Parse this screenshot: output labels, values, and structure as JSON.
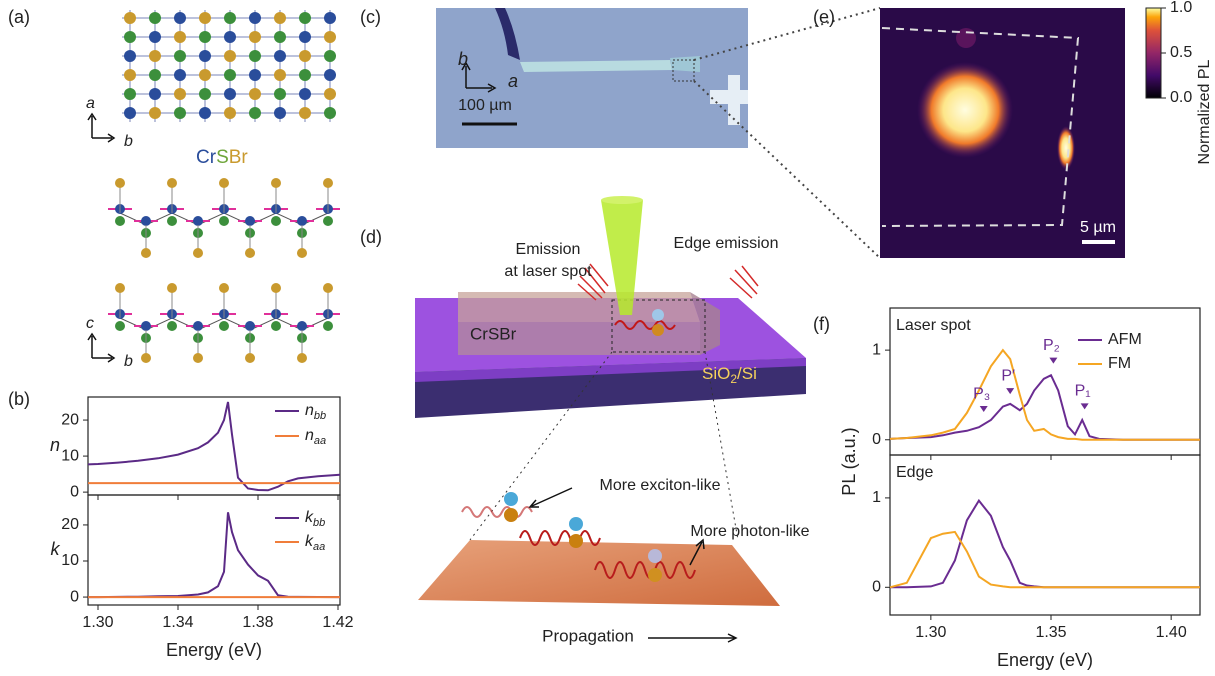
{
  "panels": {
    "a": {
      "label": "(a)",
      "axes_top": [
        "a",
        "b"
      ],
      "formula": [
        "Cr",
        "S",
        "Br"
      ],
      "axes_bottom": [
        "c",
        "b"
      ]
    },
    "c": {
      "label": "(c)",
      "axes": [
        "b",
        "a"
      ],
      "scale_bar": "100 µm"
    },
    "d": {
      "label": "(d)",
      "emission_spot": [
        "Emission",
        "at laser spot"
      ],
      "edge_emission": "Edge emission",
      "crystal": "CrSBr",
      "substrate": [
        "SiO",
        "2",
        "/Si"
      ],
      "exciton_like": "More exciton-like",
      "photon_like": "More photon-like",
      "propagation": "Propagation"
    },
    "e": {
      "label": "(e)",
      "scale_bar": "5 µm",
      "colorbar_label": "Normalized PL",
      "colorbar_lim": [
        0,
        1
      ],
      "colorbar_ticks": [
        {
          "value": 0,
          "label": "0.0"
        },
        {
          "value": 0.5,
          "label": "0.5"
        },
        {
          "value": 1,
          "label": "1.0"
        }
      ]
    }
  },
  "chart_data": [
    {
      "type": "line",
      "label": "(b)",
      "xlabel": "Energy (eV)",
      "xlim": [
        1.295,
        1.421
      ],
      "xticks": [
        {
          "value": 1.3,
          "label": "1.30"
        },
        {
          "value": 1.34,
          "label": "1.34"
        },
        {
          "value": 1.38,
          "label": "1.38"
        },
        {
          "value": 1.42,
          "label": "1.42"
        }
      ],
      "x": [
        1.295,
        1.3,
        1.31,
        1.32,
        1.33,
        1.34,
        1.35,
        1.355,
        1.36,
        1.363,
        1.365,
        1.367,
        1.37,
        1.375,
        1.38,
        1.385,
        1.39,
        1.395,
        1.4,
        1.41,
        1.421
      ],
      "subplots": [
        {
          "ylabel": "n",
          "ylim": [
            -0.8,
            26.4
          ],
          "yticks": [
            0,
            10,
            20
          ],
          "legend": true,
          "series": [
            {
              "name": "n",
              "subscript": "bb",
              "color": "#5b2a86",
              "values": [
                7.7,
                7.8,
                8.2,
                8.7,
                9.4,
                10.4,
                12.2,
                13.8,
                16.5,
                20,
                25,
                16,
                4,
                1,
                0.6,
                0.5,
                1.5,
                3,
                3.8,
                4.4,
                4.8
              ]
            },
            {
              "name": "n",
              "subscript": "aa",
              "color": "#f07d3a",
              "values": [
                2.5,
                2.5,
                2.5,
                2.5,
                2.5,
                2.5,
                2.5,
                2.5,
                2.5,
                2.5,
                2.5,
                2.5,
                2.5,
                2.5,
                2.5,
                2.5,
                2.5,
                2.5,
                2.5,
                2.5,
                2.5
              ]
            }
          ]
        },
        {
          "ylabel": "k",
          "ylim": [
            -2.2,
            28.3
          ],
          "yticks": [
            0,
            10,
            20
          ],
          "legend": true,
          "series": [
            {
              "name": "k",
              "subscript": "bb",
              "color": "#5b2a86",
              "values": [
                0,
                0,
                0.05,
                0.1,
                0.2,
                0.3,
                0.7,
                1.3,
                3,
                7,
                23.5,
                18,
                13,
                9,
                6,
                4.5,
                0.5,
                0.1,
                0.05,
                0.02,
                0
              ]
            },
            {
              "name": "k",
              "subscript": "aa",
              "color": "#f07d3a",
              "values": [
                0,
                0,
                0,
                0,
                0,
                0,
                0,
                0,
                0,
                0,
                0,
                0,
                0,
                0,
                0,
                0,
                0,
                0,
                0,
                0,
                0
              ]
            }
          ]
        }
      ]
    },
    {
      "type": "line",
      "label": "(f)",
      "xlabel": "Energy (eV)",
      "ylabel": "PL (a.u.)",
      "xlim": [
        1.283,
        1.412
      ],
      "xticks": [
        {
          "value": 1.3,
          "label": "1.30"
        },
        {
          "value": 1.35,
          "label": "1.35"
        },
        {
          "value": 1.4,
          "label": "1.40"
        }
      ],
      "x": [
        1.283,
        1.29,
        1.3,
        1.305,
        1.31,
        1.315,
        1.32,
        1.325,
        1.33,
        1.333,
        1.337,
        1.34,
        1.343,
        1.347,
        1.35,
        1.353,
        1.357,
        1.36,
        1.363,
        1.366,
        1.37,
        1.38,
        1.4,
        1.412
      ],
      "subplots": [
        {
          "title": "Laser spot",
          "ylim": [
            -0.17,
            1.47
          ],
          "yticks": [
            0,
            1
          ],
          "legend": true,
          "series": [
            {
              "name": "AFM",
              "color": "#6a2c91",
              "values": [
                0.01,
                0.02,
                0.03,
                0.05,
                0.08,
                0.1,
                0.14,
                0.22,
                0.37,
                0.4,
                0.33,
                0.4,
                0.55,
                0.68,
                0.72,
                0.55,
                0.15,
                0.06,
                0.22,
                0.04,
                0.01,
                0,
                0,
                0
              ]
            },
            {
              "name": "FM",
              "color": "#f5a623",
              "values": [
                0.01,
                0.02,
                0.05,
                0.08,
                0.12,
                0.3,
                0.55,
                0.82,
                1.0,
                0.9,
                0.5,
                0.22,
                0.1,
                0.12,
                0.06,
                0.03,
                0.01,
                0.01,
                0,
                0,
                0,
                0,
                0,
                0
              ]
            }
          ],
          "annotations": [
            {
              "text": "P₃",
              "x": 1.322,
              "y": 0.22
            },
            {
              "text": "P′",
              "x": 1.333,
              "y": 0.42
            },
            {
              "text": "P₂",
              "x": 1.351,
              "y": 0.76
            },
            {
              "text": "P₁",
              "x": 1.364,
              "y": 0.25
            }
          ]
        },
        {
          "title": "Edge",
          "ylim": [
            -0.31,
            1.48
          ],
          "yticks": [
            0,
            1
          ],
          "legend": false,
          "series": [
            {
              "name": "AFM",
              "color": "#6a2c91",
              "values": [
                0,
                0,
                0.01,
                0.05,
                0.3,
                0.75,
                0.97,
                0.8,
                0.45,
                0.3,
                0.05,
                0.02,
                0.01,
                0,
                0,
                0,
                0,
                0,
                0,
                0,
                0,
                0,
                0,
                0
              ]
            },
            {
              "name": "FM",
              "color": "#f5a623",
              "values": [
                0,
                0.05,
                0.55,
                0.6,
                0.62,
                0.4,
                0.12,
                0.03,
                0.01,
                0,
                0,
                0,
                0,
                0,
                0,
                0,
                0,
                0,
                0,
                0,
                0,
                0,
                0,
                0
              ]
            }
          ]
        }
      ]
    }
  ]
}
